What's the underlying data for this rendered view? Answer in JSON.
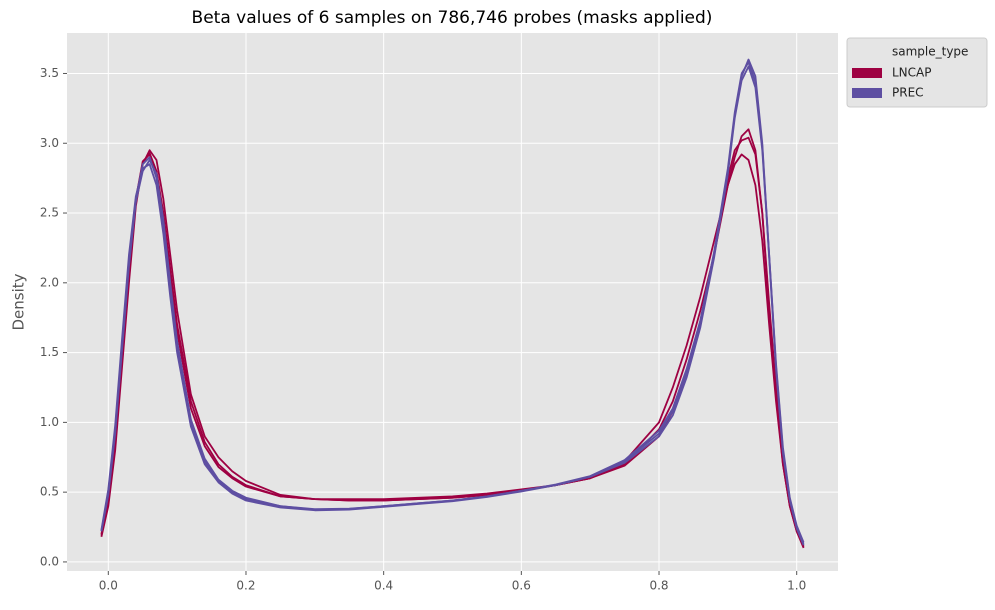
{
  "chart_data": {
    "type": "line",
    "title": "Beta values of 6 samples on 786,746 probes (masks applied)",
    "y_label": "Density",
    "legend_title": "sample_type",
    "legend_position": "outside upper right",
    "grid": true,
    "xlim": [
      -0.06,
      1.06
    ],
    "ylim": [
      -0.065,
      3.79
    ],
    "xticks": [
      {
        "value": 0,
        "label": "0.0"
      },
      0.2,
      0.4,
      0.6,
      0.8,
      {
        "value": 1,
        "label": "1.0"
      }
    ],
    "yticks": [
      {
        "value": 0,
        "label": "0.0"
      },
      0.5,
      {
        "value": 1,
        "label": "1.0"
      },
      1.5,
      {
        "value": 2,
        "label": "2.0"
      },
      2.5,
      {
        "value": 3,
        "label": "3.0"
      },
      3.5
    ],
    "x": [
      -0.01,
      0,
      0.01,
      0.02,
      0.03,
      0.04,
      0.05,
      0.06,
      0.07,
      0.08,
      0.09,
      0.1,
      0.12,
      0.14,
      0.16,
      0.18,
      0.2,
      0.25,
      0.3,
      0.35,
      0.4,
      0.45,
      0.5,
      0.55,
      0.6,
      0.65,
      0.7,
      0.75,
      0.8,
      0.82,
      0.84,
      0.86,
      0.88,
      0.9,
      0.91,
      0.92,
      0.93,
      0.94,
      0.95,
      0.96,
      0.97,
      0.98,
      0.99,
      1,
      1.01
    ],
    "series": [
      {
        "name": "LNCAP",
        "color": "#9e0142",
        "values": [
          0.18,
          0.4,
          0.8,
          1.4,
          2.0,
          2.55,
          2.85,
          2.95,
          2.88,
          2.6,
          2.2,
          1.8,
          1.2,
          0.9,
          0.75,
          0.65,
          0.58,
          0.48,
          0.45,
          0.45,
          0.45,
          0.46,
          0.47,
          0.49,
          0.52,
          0.55,
          0.6,
          0.7,
          0.95,
          1.15,
          1.45,
          1.8,
          2.2,
          2.7,
          2.9,
          3.05,
          3.1,
          2.95,
          2.5,
          1.8,
          1.2,
          0.7,
          0.4,
          0.22,
          0.1
        ]
      },
      {
        "name": "LNCAP",
        "color": "#9e0142",
        "values": [
          0.19,
          0.42,
          0.85,
          1.45,
          2.05,
          2.58,
          2.86,
          2.93,
          2.8,
          2.5,
          2.1,
          1.7,
          1.15,
          0.86,
          0.7,
          0.61,
          0.55,
          0.47,
          0.45,
          0.44,
          0.44,
          0.45,
          0.46,
          0.48,
          0.51,
          0.55,
          0.6,
          0.69,
          0.9,
          1.08,
          1.35,
          1.72,
          2.2,
          2.75,
          2.95,
          3.02,
          3.04,
          2.92,
          2.5,
          1.85,
          1.25,
          0.75,
          0.42,
          0.23,
          0.11
        ]
      },
      {
        "name": "LNCAP",
        "color": "#9e0142",
        "values": [
          0.2,
          0.45,
          0.88,
          1.5,
          2.1,
          2.6,
          2.87,
          2.92,
          2.78,
          2.45,
          2.05,
          1.65,
          1.1,
          0.83,
          0.68,
          0.6,
          0.54,
          0.47,
          0.45,
          0.44,
          0.44,
          0.45,
          0.46,
          0.48,
          0.51,
          0.55,
          0.6,
          0.72,
          1.0,
          1.25,
          1.55,
          1.9,
          2.3,
          2.7,
          2.85,
          2.92,
          2.88,
          2.7,
          2.3,
          1.7,
          1.15,
          0.7,
          0.4,
          0.22,
          0.11
        ]
      },
      {
        "name": "PREC",
        "color": "#5e4fa2",
        "values": [
          0.22,
          0.5,
          0.95,
          1.55,
          2.15,
          2.6,
          2.85,
          2.9,
          2.75,
          2.4,
          1.95,
          1.55,
          1.0,
          0.72,
          0.58,
          0.5,
          0.45,
          0.4,
          0.375,
          0.38,
          0.4,
          0.42,
          0.44,
          0.47,
          0.51,
          0.55,
          0.61,
          0.72,
          0.92,
          1.08,
          1.35,
          1.7,
          2.2,
          2.8,
          3.2,
          3.48,
          3.6,
          3.48,
          3.0,
          2.2,
          1.4,
          0.8,
          0.45,
          0.25,
          0.13
        ]
      },
      {
        "name": "PREC",
        "color": "#5e4fa2",
        "values": [
          0.23,
          0.52,
          0.98,
          1.6,
          2.2,
          2.62,
          2.82,
          2.85,
          2.7,
          2.35,
          1.9,
          1.5,
          0.97,
          0.7,
          0.57,
          0.49,
          0.44,
          0.39,
          0.37,
          0.375,
          0.395,
          0.415,
          0.435,
          0.465,
          0.505,
          0.55,
          0.61,
          0.71,
          0.9,
          1.05,
          1.32,
          1.68,
          2.18,
          2.78,
          3.18,
          3.45,
          3.55,
          3.4,
          2.95,
          2.2,
          1.42,
          0.82,
          0.46,
          0.26,
          0.14
        ]
      },
      {
        "name": "PREC",
        "color": "#5e4fa2",
        "values": [
          0.22,
          0.48,
          0.92,
          1.52,
          2.12,
          2.58,
          2.8,
          2.88,
          2.78,
          2.45,
          2.0,
          1.58,
          1.02,
          0.74,
          0.59,
          0.51,
          0.46,
          0.4,
          0.378,
          0.382,
          0.4,
          0.42,
          0.44,
          0.47,
          0.51,
          0.555,
          0.615,
          0.73,
          0.94,
          1.1,
          1.38,
          1.73,
          2.22,
          2.82,
          3.22,
          3.5,
          3.58,
          3.44,
          2.98,
          2.18,
          1.38,
          0.78,
          0.44,
          0.24,
          0.12
        ]
      }
    ]
  }
}
